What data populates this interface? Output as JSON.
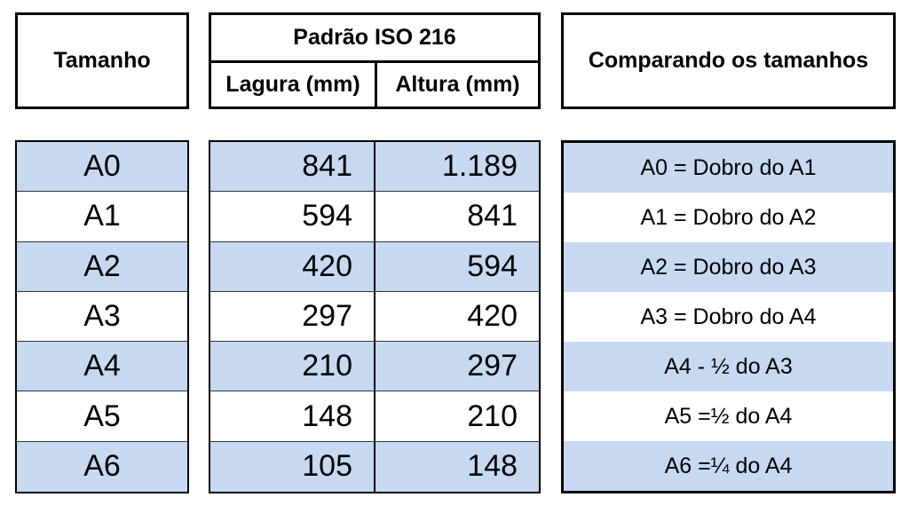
{
  "header": {
    "size": "Tamanho",
    "standard": "Padrão ISO 216",
    "width": "Lagura (mm)",
    "height": "Altura (mm)",
    "comparison": "Comparando os tamanhos"
  },
  "rows": [
    {
      "size": "A0",
      "width": "841",
      "height": "1.189",
      "comparison": "A0 = Dobro do A1"
    },
    {
      "size": "A1",
      "width": "594",
      "height": "841",
      "comparison": "A1 = Dobro do A2"
    },
    {
      "size": "A2",
      "width": "420",
      "height": "594",
      "comparison": "A2 = Dobro do A3"
    },
    {
      "size": "A3",
      "width": "297",
      "height": "420",
      "comparison": "A3 = Dobro do A4"
    },
    {
      "size": "A4",
      "width": "210",
      "height": "297",
      "comparison": "A4 - ½ do A3"
    },
    {
      "size": "A5",
      "width": "148",
      "height": "210",
      "comparison": "A5 =½ do A4"
    },
    {
      "size": "A6",
      "width": "105",
      "height": "148",
      "comparison": "A6 =¼ do A4"
    }
  ]
}
